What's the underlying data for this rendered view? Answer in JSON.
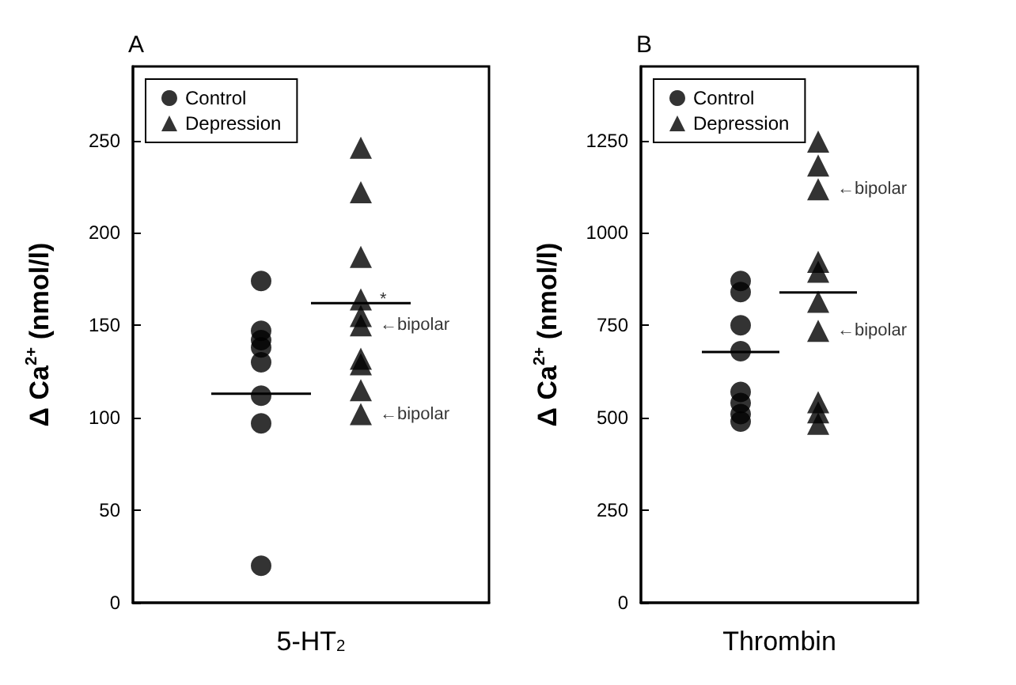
{
  "chart_data": [
    {
      "type": "scatter",
      "title": "A",
      "ylabel": "Δ Ca$^{2+}$ (nmol/l)",
      "categories": [
        "5-HT$_{2}$"
      ],
      "ylim": [
        0,
        290
      ],
      "yticks": [
        0,
        50,
        100,
        150,
        200,
        250
      ],
      "legend": "top left",
      "grid": false,
      "series": [
        {
          "name": "Control",
          "color": "#000000",
          "marker": "circle",
          "x": [
            "5-HT$_{2}$",
            "5-HT$_{2}$",
            "5-HT$_{2}$",
            "5-HT$_{2}$",
            "5-HT$_{2}$",
            "5-HT$_{2}$",
            "5-HT$_{2}$",
            "5-HT$_{2}$"
          ],
          "values": [
            174,
            147,
            142,
            138,
            130,
            112,
            97,
            20
          ]
        },
        {
          "name": "Depression",
          "color": "#000000",
          "marker": "triangle",
          "x": [
            "5-HT$_{2}$",
            "5-HT$_{2}$",
            "5-HT$_{2}$",
            "5-HT$_{2}$",
            "5-HT$_{2}$",
            "5-HT$_{2}$",
            "5-HT$_{2}$",
            "5-HT$_{2}$",
            "5-HT$_{2}$",
            "5-HT$_{2}$"
          ],
          "values": [
            246,
            222,
            187,
            164,
            155,
            150,
            132,
            129,
            115,
            102
          ],
          "value_labels": [
            null,
            null,
            null,
            "*",
            null,
            "←bipolar",
            null,
            null,
            null,
            "←bipolar"
          ]
        }
      ],
      "ref_lines": [
        {
          "axis": "y",
          "value": 113,
          "color": "#000000"
        },
        {
          "axis": "y",
          "value": 162,
          "color": "#000000"
        }
      ]
    },
    {
      "type": "scatter",
      "title": "B",
      "ylabel": "Δ Ca$^{2+}$ (nmol/l)",
      "categories": [
        "Thrombin"
      ],
      "ylim": [
        0,
        1450
      ],
      "yticks": [
        0,
        250,
        500,
        750,
        1000,
        1250
      ],
      "legend": "top left",
      "grid": false,
      "series": [
        {
          "name": "Control",
          "color": "#000000",
          "marker": "circle",
          "x": [
            "Thrombin",
            "Thrombin",
            "Thrombin",
            "Thrombin",
            "Thrombin",
            "Thrombin",
            "Thrombin",
            "Thrombin"
          ],
          "values": [
            870,
            840,
            750,
            680,
            570,
            540,
            510,
            490
          ]
        },
        {
          "name": "Depression",
          "color": "#000000",
          "marker": "triangle",
          "x": [
            "Thrombin",
            "Thrombin",
            "Thrombin",
            "Thrombin",
            "Thrombin",
            "Thrombin",
            "Thrombin",
            "Thrombin",
            "Thrombin",
            "Thrombin"
          ],
          "values": [
            1247,
            1182,
            1118,
            922,
            895,
            814,
            735,
            542,
            515,
            484
          ],
          "value_labels": [
            null,
            null,
            "←bipolar",
            null,
            null,
            null,
            "←bipolar",
            null,
            null,
            null
          ]
        }
      ],
      "ref_lines": [
        {
          "axis": "y",
          "value": 678,
          "color": "#000000"
        },
        {
          "axis": "y",
          "value": 839,
          "color": "#000000"
        }
      ]
    }
  ]
}
